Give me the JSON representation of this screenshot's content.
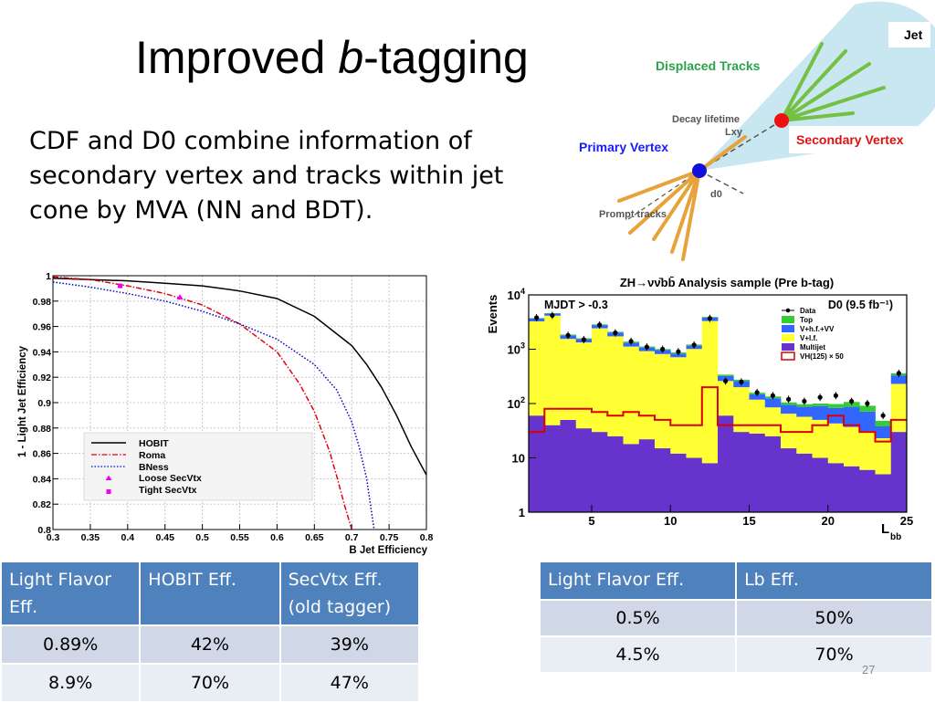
{
  "slide": {
    "title_main": "Improved ",
    "title_italic": "b",
    "title_rest": "-tagging",
    "body": "CDF and D0 combine information of secondary vertex and tracks within jet cone by MVA (NN and BDT).",
    "page_number": "27"
  },
  "diagram": {
    "labels": {
      "jet": "Jet",
      "displaced_tracks": "Displaced Tracks",
      "decay_lifetime": "Decay lifetime",
      "lxy": "Lxy",
      "primary_vertex": "Primary Vertex",
      "secondary_vertex": "Secondary Vertex",
      "d0": "d0",
      "prompt_tracks": "Prompt tracks"
    }
  },
  "tables": {
    "left": {
      "headers": [
        "Light Flavor Eff.",
        "HOBIT Eff.",
        "SecVtx Eff. (old tagger)"
      ],
      "header_lines": [
        [
          "Light Flavor",
          "Eff."
        ],
        [
          "HOBIT Eff."
        ],
        [
          "SecVtx Eff.",
          "(old tagger)"
        ]
      ],
      "rows": [
        [
          "0.89%",
          "42%",
          "39%"
        ],
        [
          "8.9%",
          "70%",
          "47%"
        ]
      ]
    },
    "right": {
      "headers": [
        "Light Flavor Eff.",
        "Lb Eff."
      ],
      "rows": [
        [
          "0.5%",
          "50%"
        ],
        [
          "4.5%",
          "70%"
        ]
      ]
    }
  },
  "chart_data": [
    {
      "type": "line",
      "xlabel": "B Jet Efficiency",
      "ylabel": "1 - Light Jet Efficiency",
      "xlim": [
        0.3,
        0.8
      ],
      "ylim": [
        0.8,
        1.0
      ],
      "x_ticks": [
        "0.3",
        "0.35",
        "0.4",
        "0.45",
        "0.5",
        "0.55",
        "0.6",
        "0.65",
        "0.7",
        "0.75",
        "0.8"
      ],
      "y_ticks": [
        "0.8",
        "0.82",
        "0.84",
        "0.86",
        "0.88",
        "0.9",
        "0.92",
        "0.94",
        "0.96",
        "0.98",
        "1"
      ],
      "grid": true,
      "legend_position": "bottom-left",
      "series": [
        {
          "name": "HOBIT",
          "color": "#000000",
          "style": "solid",
          "x": [
            0.3,
            0.35,
            0.4,
            0.45,
            0.5,
            0.55,
            0.6,
            0.65,
            0.7,
            0.72,
            0.74,
            0.76,
            0.78,
            0.8
          ],
          "y": [
            0.998,
            0.997,
            0.996,
            0.994,
            0.992,
            0.988,
            0.982,
            0.968,
            0.945,
            0.93,
            0.912,
            0.89,
            0.865,
            0.843
          ]
        },
        {
          "name": "Roma",
          "color": "#e3000f",
          "style": "dashdot",
          "x": [
            0.3,
            0.35,
            0.4,
            0.45,
            0.5,
            0.55,
            0.6,
            0.63,
            0.65,
            0.67,
            0.68,
            0.69,
            0.7
          ],
          "y": [
            0.999,
            0.997,
            0.992,
            0.986,
            0.977,
            0.962,
            0.94,
            0.915,
            0.893,
            0.862,
            0.842,
            0.82,
            0.8
          ]
        },
        {
          "name": "BNess",
          "color": "#0000cc",
          "style": "dotted",
          "x": [
            0.3,
            0.35,
            0.4,
            0.45,
            0.5,
            0.55,
            0.6,
            0.65,
            0.68,
            0.7,
            0.71,
            0.72,
            0.73
          ],
          "y": [
            0.995,
            0.991,
            0.986,
            0.98,
            0.972,
            0.962,
            0.95,
            0.93,
            0.91,
            0.885,
            0.865,
            0.84,
            0.8
          ]
        },
        {
          "name": "Loose SecVtx",
          "color": "#ee00ee",
          "marker": "triangle",
          "x": [
            0.47
          ],
          "y": [
            0.983
          ]
        },
        {
          "name": "Tight SecVtx",
          "color": "#ee00ee",
          "marker": "square",
          "x": [
            0.39
          ],
          "y": [
            0.992
          ]
        }
      ]
    },
    {
      "type": "bar",
      "subtype": "stacked-histogram",
      "title": "ZH→νν̄bb̄ Analysis sample (Pre b-tag)",
      "annotation_left": "MJDT > -0.3",
      "annotation_right": "D0 (9.5 fb⁻¹)",
      "xlabel": "L",
      "xlabel_sub": "bb",
      "ylabel": "Events",
      "xlim": [
        1,
        25
      ],
      "ylim": [
        1,
        10000
      ],
      "y_scale": "log",
      "x_ticks": [
        "5",
        "10",
        "15",
        "20",
        "25"
      ],
      "y_ticks": [
        {
          "value": 1,
          "base": "1",
          "exp": ""
        },
        {
          "value": 10,
          "base": "10",
          "exp": ""
        },
        {
          "value": 100,
          "base": "10",
          "exp": "2"
        },
        {
          "value": 1000,
          "base": "10",
          "exp": "3"
        },
        {
          "value": 10000,
          "base": "10",
          "exp": "4"
        }
      ],
      "bin_edges": [
        1,
        2,
        3,
        4,
        5,
        6,
        7,
        8,
        9,
        10,
        11,
        12,
        13,
        14,
        15,
        16,
        17,
        18,
        19,
        20,
        21,
        22,
        23,
        24,
        25
      ],
      "legend_position": "top-right",
      "series": [
        {
          "name": "Multijet",
          "color": "#6633cc",
          "values": [
            60,
            40,
            50,
            35,
            30,
            25,
            18,
            22,
            15,
            12,
            10,
            8,
            60,
            30,
            28,
            25,
            15,
            12,
            10,
            8,
            7,
            6,
            5,
            30
          ]
        },
        {
          "name": "V+l.f.",
          "color": "#ffff33",
          "values": [
            3200,
            4100,
            1500,
            1300,
            2400,
            1700,
            1100,
            900,
            800,
            700,
            1000,
            3300,
            200,
            170,
            90,
            60,
            50,
            45,
            40,
            35,
            30,
            25,
            18,
            200
          ]
        },
        {
          "name": "V+h.f.+VV",
          "color": "#3366ff",
          "values": [
            400,
            400,
            250,
            200,
            350,
            300,
            200,
            150,
            150,
            120,
            150,
            500,
            60,
            60,
            30,
            40,
            30,
            30,
            40,
            40,
            50,
            40,
            15,
            100
          ]
        },
        {
          "name": "Top",
          "color": "#33cc33",
          "values": [
            80,
            80,
            60,
            50,
            80,
            70,
            60,
            50,
            40,
            40,
            60,
            120,
            20,
            15,
            10,
            10,
            10,
            10,
            10,
            15,
            20,
            20,
            10,
            30
          ]
        },
        {
          "name": "VH(125) × 50",
          "color": "#dd0000",
          "style": "step-line",
          "values": [
            30,
            80,
            80,
            80,
            70,
            60,
            70,
            60,
            50,
            40,
            40,
            200,
            40,
            40,
            40,
            40,
            30,
            30,
            40,
            60,
            40,
            30,
            20,
            50
          ]
        }
      ],
      "data_points": {
        "name": "Data",
        "values": [
          3800,
          4200,
          1800,
          1500,
          2800,
          2000,
          1400,
          1100,
          1000,
          900,
          1200,
          3700,
          260,
          250,
          160,
          140,
          120,
          110,
          130,
          140,
          110,
          100,
          60,
          360
        ]
      }
    }
  ]
}
